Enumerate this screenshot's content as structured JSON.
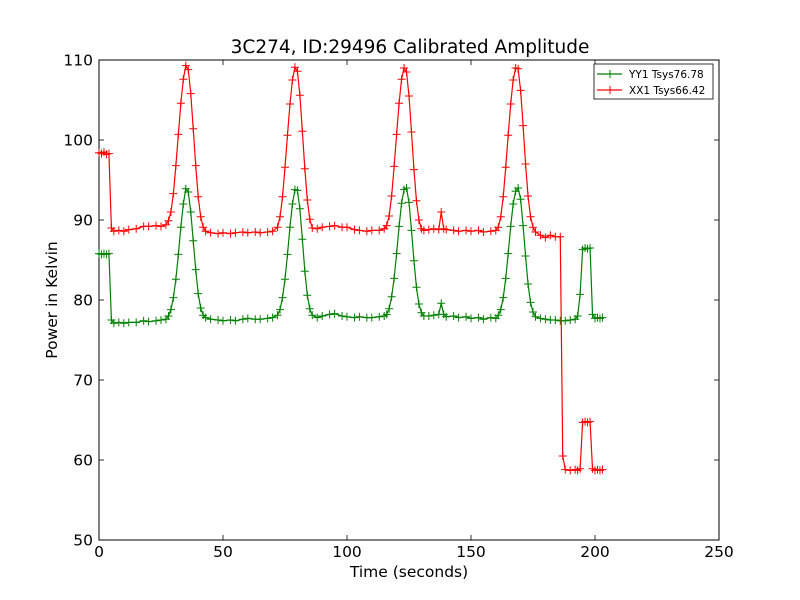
{
  "chart_data": {
    "type": "line",
    "title": "3C274, ID:29496 Calibrated Amplitude",
    "xlabel": "Time (seconds)",
    "ylabel": "Power in Kelvin",
    "xlim": [
      0,
      250
    ],
    "ylim": [
      50,
      110
    ],
    "xticks": [
      0,
      50,
      100,
      150,
      200,
      250
    ],
    "yticks": [
      50,
      60,
      70,
      80,
      90,
      100,
      110
    ],
    "grid": false,
    "legend_position": "top-right",
    "marker": "+",
    "series": [
      {
        "name": "YY1 Tsys76.78",
        "color": "#008000",
        "points": [
          [
            0,
            85.8
          ],
          [
            1,
            85.7
          ],
          [
            2,
            85.8
          ],
          [
            3,
            85.7
          ],
          [
            4,
            85.8
          ],
          [
            5,
            77.5
          ],
          [
            6,
            77.1
          ],
          [
            8,
            77.2
          ],
          [
            10,
            77.1
          ],
          [
            12,
            77.2
          ],
          [
            15,
            77.2
          ],
          [
            18,
            77.4
          ],
          [
            20,
            77.3
          ],
          [
            23,
            77.4
          ],
          [
            25,
            77.5
          ],
          [
            27,
            77.6
          ],
          [
            28,
            78.0
          ],
          [
            29,
            78.8
          ],
          [
            30,
            80.3
          ],
          [
            31,
            82.6
          ],
          [
            32,
            85.7
          ],
          [
            33,
            89.1
          ],
          [
            34,
            92.0
          ],
          [
            35,
            93.9
          ],
          [
            36,
            93.5
          ],
          [
            37,
            91.0
          ],
          [
            38,
            87.4
          ],
          [
            39,
            83.8
          ],
          [
            40,
            80.8
          ],
          [
            41,
            79.0
          ],
          [
            42,
            78.1
          ],
          [
            43,
            77.8
          ],
          [
            45,
            77.6
          ],
          [
            48,
            77.5
          ],
          [
            50,
            77.4
          ],
          [
            53,
            77.5
          ],
          [
            55,
            77.4
          ],
          [
            58,
            77.6
          ],
          [
            60,
            77.7
          ],
          [
            63,
            77.6
          ],
          [
            65,
            77.6
          ],
          [
            68,
            77.7
          ],
          [
            70,
            77.8
          ],
          [
            72,
            78.1
          ],
          [
            73,
            78.8
          ],
          [
            74,
            80.3
          ],
          [
            75,
            82.6
          ],
          [
            76,
            85.7
          ],
          [
            77,
            89.1
          ],
          [
            78,
            92.0
          ],
          [
            79,
            93.8
          ],
          [
            80,
            93.7
          ],
          [
            81,
            91.4
          ],
          [
            82,
            87.6
          ],
          [
            83,
            83.6
          ],
          [
            84,
            80.6
          ],
          [
            85,
            78.9
          ],
          [
            86,
            78.1
          ],
          [
            88,
            77.8
          ],
          [
            90,
            78.0
          ],
          [
            93,
            78.2
          ],
          [
            95,
            78.3
          ],
          [
            98,
            78.0
          ],
          [
            100,
            77.9
          ],
          [
            103,
            77.8
          ],
          [
            105,
            77.9
          ],
          [
            108,
            77.8
          ],
          [
            110,
            77.8
          ],
          [
            113,
            77.9
          ],
          [
            115,
            78.0
          ],
          [
            116,
            78.2
          ],
          [
            117,
            78.9
          ],
          [
            118,
            80.4
          ],
          [
            119,
            82.7
          ],
          [
            120,
            85.8
          ],
          [
            121,
            89.2
          ],
          [
            122,
            92.1
          ],
          [
            123,
            93.8
          ],
          [
            124,
            94.0
          ],
          [
            125,
            92.2
          ],
          [
            126,
            88.7
          ],
          [
            127,
            84.9
          ],
          [
            128,
            81.6
          ],
          [
            129,
            79.5
          ],
          [
            130,
            78.4
          ],
          [
            131,
            78.0
          ],
          [
            133,
            78.0
          ],
          [
            135,
            78.1
          ],
          [
            137,
            78.2
          ],
          [
            138,
            79.6
          ],
          [
            139,
            78.2
          ],
          [
            140,
            77.9
          ],
          [
            143,
            78.0
          ],
          [
            145,
            77.8
          ],
          [
            148,
            77.9
          ],
          [
            150,
            77.7
          ],
          [
            153,
            77.8
          ],
          [
            155,
            77.6
          ],
          [
            158,
            77.8
          ],
          [
            160,
            77.7
          ],
          [
            161,
            78.1
          ],
          [
            162,
            78.8
          ],
          [
            163,
            80.3
          ],
          [
            164,
            82.7
          ],
          [
            165,
            85.8
          ],
          [
            166,
            89.2
          ],
          [
            167,
            92.0
          ],
          [
            168,
            93.6
          ],
          [
            169,
            94.0
          ],
          [
            170,
            92.6
          ],
          [
            171,
            89.3
          ],
          [
            172,
            85.5
          ],
          [
            173,
            82.0
          ],
          [
            174,
            79.7
          ],
          [
            175,
            78.5
          ],
          [
            176,
            77.9
          ],
          [
            178,
            77.7
          ],
          [
            180,
            77.6
          ],
          [
            182,
            77.5
          ],
          [
            184,
            77.5
          ],
          [
            186,
            77.4
          ],
          [
            188,
            77.4
          ],
          [
            190,
            77.5
          ],
          [
            192,
            77.6
          ],
          [
            193,
            78.0
          ],
          [
            194,
            80.7
          ],
          [
            195,
            86.3
          ],
          [
            196,
            86.5
          ],
          [
            197,
            86.4
          ],
          [
            198,
            86.5
          ],
          [
            199,
            78.2
          ],
          [
            200,
            77.7
          ],
          [
            201,
            77.8
          ],
          [
            202,
            77.7
          ],
          [
            203,
            77.8
          ]
        ]
      },
      {
        "name": "XX1 Tsys66.42",
        "color": "#ff0000",
        "points": [
          [
            0,
            98.4
          ],
          [
            1,
            98.3
          ],
          [
            2,
            98.5
          ],
          [
            3,
            98.2
          ],
          [
            4,
            98.3
          ],
          [
            5,
            89.0
          ],
          [
            6,
            88.6
          ],
          [
            8,
            88.7
          ],
          [
            10,
            88.6
          ],
          [
            12,
            88.8
          ],
          [
            15,
            88.9
          ],
          [
            18,
            89.2
          ],
          [
            20,
            89.2
          ],
          [
            23,
            89.3
          ],
          [
            25,
            89.2
          ],
          [
            27,
            89.4
          ],
          [
            28,
            89.9
          ],
          [
            29,
            91.0
          ],
          [
            30,
            93.3
          ],
          [
            31,
            96.8
          ],
          [
            32,
            100.7
          ],
          [
            33,
            104.6
          ],
          [
            34,
            107.6
          ],
          [
            35,
            109.3
          ],
          [
            36,
            108.8
          ],
          [
            37,
            105.8
          ],
          [
            38,
            101.4
          ],
          [
            39,
            96.8
          ],
          [
            40,
            92.9
          ],
          [
            41,
            90.4
          ],
          [
            42,
            89.1
          ],
          [
            43,
            88.6
          ],
          [
            45,
            88.4
          ],
          [
            48,
            88.3
          ],
          [
            50,
            88.4
          ],
          [
            53,
            88.3
          ],
          [
            55,
            88.4
          ],
          [
            58,
            88.5
          ],
          [
            60,
            88.4
          ],
          [
            63,
            88.5
          ],
          [
            65,
            88.4
          ],
          [
            68,
            88.5
          ],
          [
            70,
            88.6
          ],
          [
            72,
            89.1
          ],
          [
            73,
            90.4
          ],
          [
            74,
            92.9
          ],
          [
            75,
            96.6
          ],
          [
            76,
            100.6
          ],
          [
            77,
            104.5
          ],
          [
            78,
            107.5
          ],
          [
            79,
            109.1
          ],
          [
            80,
            108.6
          ],
          [
            81,
            105.6
          ],
          [
            82,
            101.1
          ],
          [
            83,
            96.4
          ],
          [
            84,
            92.5
          ],
          [
            85,
            90.1
          ],
          [
            86,
            89.0
          ],
          [
            88,
            88.9
          ],
          [
            90,
            89.1
          ],
          [
            93,
            89.2
          ],
          [
            95,
            89.3
          ],
          [
            98,
            89.1
          ],
          [
            100,
            89.1
          ],
          [
            103,
            88.8
          ],
          [
            105,
            88.7
          ],
          [
            108,
            88.6
          ],
          [
            110,
            88.7
          ],
          [
            113,
            88.7
          ],
          [
            115,
            88.9
          ],
          [
            116,
            89.3
          ],
          [
            117,
            90.5
          ],
          [
            118,
            93.0
          ],
          [
            119,
            96.7
          ],
          [
            120,
            100.7
          ],
          [
            121,
            104.6
          ],
          [
            122,
            107.6
          ],
          [
            123,
            109.0
          ],
          [
            124,
            108.5
          ],
          [
            125,
            105.5
          ],
          [
            126,
            101.0
          ],
          [
            127,
            96.3
          ],
          [
            128,
            92.4
          ],
          [
            129,
            90.0
          ],
          [
            130,
            88.9
          ],
          [
            131,
            88.7
          ],
          [
            133,
            88.8
          ],
          [
            135,
            88.9
          ],
          [
            137,
            88.8
          ],
          [
            138,
            91.0
          ],
          [
            139,
            88.9
          ],
          [
            140,
            88.8
          ],
          [
            143,
            88.7
          ],
          [
            145,
            88.6
          ],
          [
            148,
            88.7
          ],
          [
            150,
            88.6
          ],
          [
            153,
            88.7
          ],
          [
            155,
            88.5
          ],
          [
            158,
            88.6
          ],
          [
            160,
            88.7
          ],
          [
            161,
            89.1
          ],
          [
            162,
            90.4
          ],
          [
            163,
            92.9
          ],
          [
            164,
            96.6
          ],
          [
            165,
            100.6
          ],
          [
            166,
            104.5
          ],
          [
            167,
            107.5
          ],
          [
            168,
            109.0
          ],
          [
            169,
            108.9
          ],
          [
            170,
            106.2
          ],
          [
            171,
            101.8
          ],
          [
            172,
            97.0
          ],
          [
            173,
            93.0
          ],
          [
            174,
            90.4
          ],
          [
            175,
            89.1
          ],
          [
            176,
            88.5
          ],
          [
            178,
            88.1
          ],
          [
            180,
            87.8
          ],
          [
            182,
            88.1
          ],
          [
            184,
            87.9
          ],
          [
            186,
            87.9
          ],
          [
            187,
            60.5
          ],
          [
            188,
            58.8
          ],
          [
            190,
            58.7
          ],
          [
            192,
            58.8
          ],
          [
            193,
            58.7
          ],
          [
            194,
            58.9
          ],
          [
            195,
            64.7
          ],
          [
            196,
            64.8
          ],
          [
            197,
            64.7
          ],
          [
            198,
            64.8
          ],
          [
            199,
            58.9
          ],
          [
            200,
            58.7
          ],
          [
            201,
            58.8
          ],
          [
            202,
            58.7
          ],
          [
            203,
            58.8
          ]
        ]
      }
    ]
  }
}
